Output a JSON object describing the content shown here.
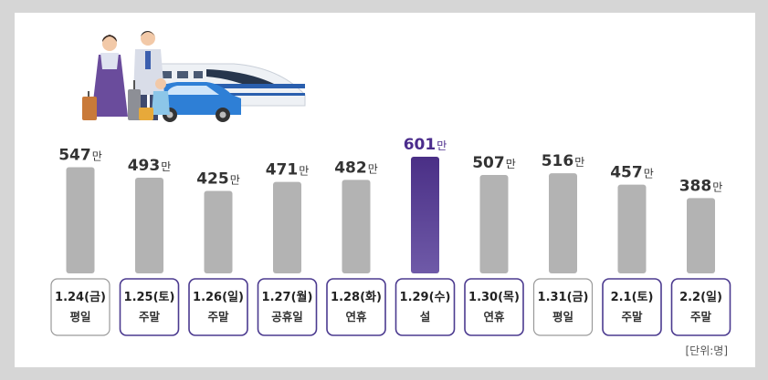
{
  "chart_data": {
    "type": "bar",
    "unit_suffix": "만",
    "categories": [
      {
        "date": "1.24(금)",
        "day": "평일"
      },
      {
        "date": "1.25(토)",
        "day": "주말"
      },
      {
        "date": "1.26(일)",
        "day": "주말"
      },
      {
        "date": "1.27(월)",
        "day": "공휴일"
      },
      {
        "date": "1.28(화)",
        "day": "연휴"
      },
      {
        "date": "1.29(수)",
        "day": "설"
      },
      {
        "date": "1.30(목)",
        "day": "연휴"
      },
      {
        "date": "1.31(금)",
        "day": "평일"
      },
      {
        "date": "2.1(토)",
        "day": "주말"
      },
      {
        "date": "2.2(일)",
        "day": "주말"
      }
    ],
    "values": [
      547,
      493,
      425,
      471,
      482,
      601,
      507,
      516,
      457,
      388
    ],
    "highlight_index": 5,
    "box_styles": [
      "gray",
      "purple",
      "purple",
      "purple",
      "purple",
      "purple",
      "purple",
      "gray",
      "purple",
      "purple"
    ],
    "colors": {
      "bar": "#b3b3b3",
      "highlight_top": "#4a2f86",
      "highlight_bottom": "#6f5aa8",
      "value_text": "#333333",
      "highlight_text": "#4b2c8c",
      "box_border_purple": "#4b3a8f",
      "box_border_gray": "#9a9a9a"
    },
    "unit_note": "[단위:명]"
  }
}
